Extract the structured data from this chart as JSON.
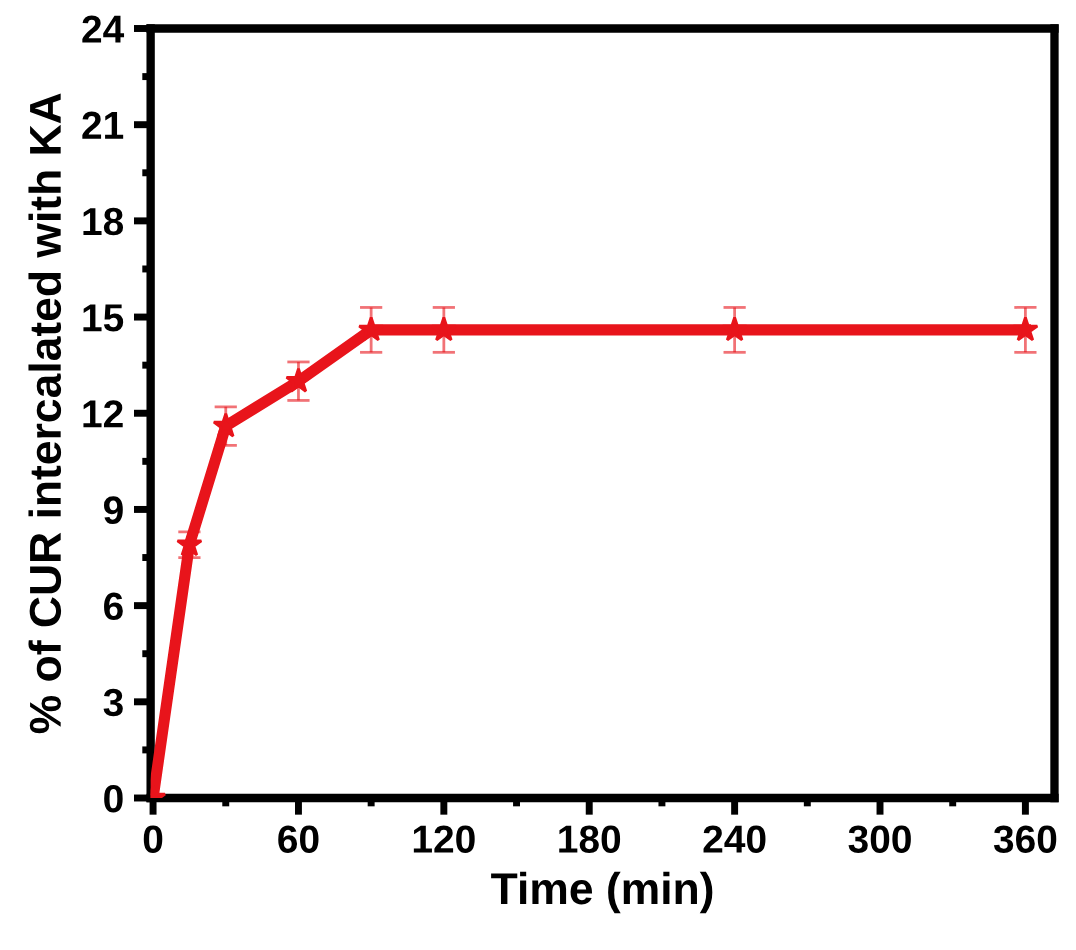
{
  "chart_data": {
    "type": "line",
    "xlabel": "Time (min)",
    "ylabel": "% of CUR intercalated with KA",
    "x": [
      0,
      15,
      30,
      60,
      90,
      120,
      240,
      360
    ],
    "series": [
      {
        "color": "#e8141b",
        "values": [
          0,
          7.9,
          11.6,
          13.0,
          14.6,
          14.6,
          14.6,
          14.6
        ],
        "errors": [
          null,
          0.4,
          0.6,
          0.6,
          0.7,
          0.7,
          0.7,
          0.7
        ]
      }
    ],
    "xlim": [
      -1,
      372
    ],
    "xticks": [
      0,
      60,
      120,
      180,
      240,
      300,
      360
    ],
    "ylim": [
      0,
      24
    ],
    "yticks": [
      0,
      3,
      6,
      9,
      12,
      15,
      18,
      21,
      24
    ],
    "marker": "star",
    "line_style": "solid",
    "grid": false,
    "legend": false
  }
}
